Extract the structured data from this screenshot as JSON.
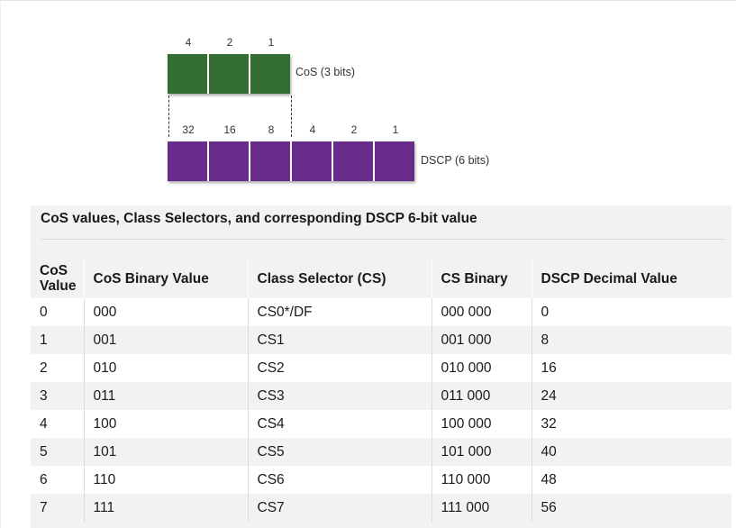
{
  "diagram": {
    "cos": {
      "bit_weights": [
        "4",
        "2",
        "1"
      ],
      "label": "CoS (3 bits)",
      "color": "#356e33"
    },
    "dscp": {
      "bit_weights": [
        "32",
        "16",
        "8",
        "4",
        "2",
        "1"
      ],
      "label": "DSCP (6 bits)",
      "color": "#682c8b"
    }
  },
  "table": {
    "title": "CoS values, Class Selectors, and corresponding DSCP 6-bit value",
    "headers": {
      "cos_value_line1": "CoS",
      "cos_value_line2": "Value",
      "cos_binary": "CoS Binary Value",
      "class_selector": "Class Selector (CS)",
      "cs_binary": "CS Binary",
      "dscp_decimal": "DSCP Decimal Value"
    },
    "rows": [
      {
        "cos": "0",
        "cos_bin": "000",
        "cs": "CS0*/DF",
        "cs_bin": "000 000",
        "dscp": "0"
      },
      {
        "cos": "1",
        "cos_bin": "001",
        "cs": "CS1",
        "cs_bin": "001 000",
        "dscp": "8"
      },
      {
        "cos": "2",
        "cos_bin": "010",
        "cs": "CS2",
        "cs_bin": "010 000",
        "dscp": "16"
      },
      {
        "cos": "3",
        "cos_bin": "011",
        "cs": "CS3",
        "cs_bin": "011 000",
        "dscp": "24"
      },
      {
        "cos": "4",
        "cos_bin": "100",
        "cs": "CS4",
        "cs_bin": "100 000",
        "dscp": "32"
      },
      {
        "cos": "5",
        "cos_bin": "101",
        "cs": "CS5",
        "cs_bin": "101 000",
        "dscp": "40"
      },
      {
        "cos": "6",
        "cos_bin": "110",
        "cs": "CS6",
        "cs_bin": "110 000",
        "dscp": "48"
      },
      {
        "cos": "7",
        "cos_bin": "111",
        "cs": "CS7",
        "cs_bin": "111 000",
        "dscp": "56"
      }
    ]
  }
}
